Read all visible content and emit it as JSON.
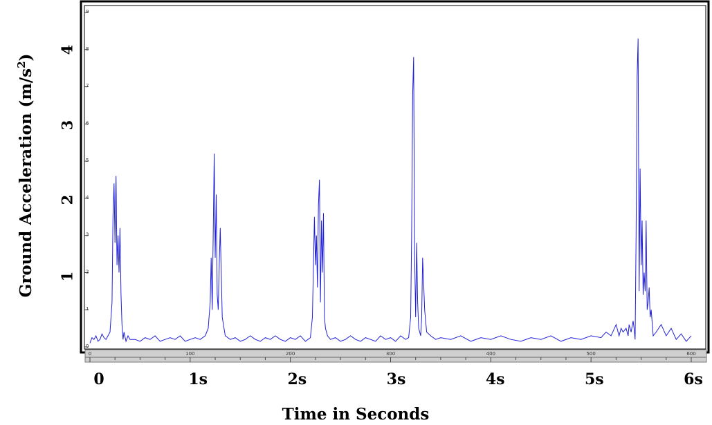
{
  "chart_data": {
    "type": "line",
    "title": "",
    "xlabel": "Time in Seconds",
    "ylabel": "Ground Acceleration (m/s",
    "ylabel_superscript": "2",
    "ylabel_close": ")",
    "x_major_ticks": [
      "0",
      "1s",
      "2s",
      "3s",
      "4s",
      "5s",
      "6s"
    ],
    "y_major_ticks": [
      "1",
      "2",
      "3",
      "4"
    ],
    "y_major_values": [
      1,
      2,
      3,
      4
    ],
    "y_minor_ticks": [
      "0",
      "1",
      "2",
      "3",
      "4",
      "5",
      "6",
      "7",
      "8",
      "9"
    ],
    "x_minor_ticks": [
      "0",
      "100",
      "200",
      "300",
      "400",
      "500",
      "600"
    ],
    "xlim": [
      0,
      600
    ],
    "ylim": [
      0,
      9
    ],
    "grid": false,
    "series": [
      {
        "color": "#1f1fd8",
        "x": [
          0,
          2,
          4,
          6,
          8,
          10,
          12,
          14,
          16,
          18,
          20,
          22,
          23,
          24,
          25,
          26,
          27,
          28,
          29,
          30,
          31,
          32,
          33,
          34,
          36,
          38,
          40,
          45,
          50,
          55,
          60,
          65,
          70,
          75,
          80,
          85,
          90,
          95,
          100,
          105,
          110,
          115,
          118,
          120,
          121,
          122,
          123,
          124,
          125,
          126,
          127,
          128,
          129,
          130,
          132,
          135,
          140,
          145,
          150,
          155,
          160,
          165,
          170,
          175,
          180,
          185,
          190,
          195,
          200,
          205,
          210,
          215,
          220,
          222,
          224,
          225,
          226,
          227,
          228,
          229,
          230,
          231,
          232,
          233,
          234,
          235,
          237,
          240,
          245,
          250,
          255,
          260,
          265,
          270,
          275,
          280,
          285,
          290,
          295,
          300,
          305,
          310,
          315,
          318,
          320,
          321,
          322,
          323,
          324,
          325,
          326,
          327,
          328,
          330,
          331,
          332,
          334,
          336,
          340,
          345,
          350,
          360,
          370,
          380,
          390,
          400,
          410,
          420,
          430,
          440,
          450,
          460,
          470,
          480,
          490,
          500,
          510,
          515,
          520,
          525,
          528,
          530,
          532,
          535,
          537,
          538,
          540,
          542,
          543,
          544,
          545,
          546,
          547,
          548,
          549,
          550,
          551,
          552,
          553,
          554,
          555,
          556,
          557,
          558,
          559,
          560,
          562,
          565,
          570,
          575,
          580,
          585,
          590,
          595,
          600
        ],
        "y": [
          0.1,
          0.25,
          0.2,
          0.3,
          0.15,
          0.2,
          0.35,
          0.25,
          0.2,
          0.3,
          0.4,
          1.2,
          3.5,
          4.4,
          2.8,
          4.6,
          2.2,
          3.0,
          2.0,
          3.2,
          1.4,
          0.6,
          0.2,
          0.4,
          0.15,
          0.3,
          0.2,
          0.2,
          0.15,
          0.25,
          0.2,
          0.3,
          0.15,
          0.2,
          0.25,
          0.2,
          0.3,
          0.15,
          0.2,
          0.25,
          0.2,
          0.3,
          0.5,
          1.2,
          2.4,
          1.0,
          3.0,
          5.2,
          2.4,
          4.1,
          1.4,
          1.0,
          2.2,
          3.2,
          0.8,
          0.3,
          0.2,
          0.25,
          0.15,
          0.2,
          0.3,
          0.2,
          0.15,
          0.25,
          0.2,
          0.3,
          0.2,
          0.15,
          0.25,
          0.2,
          0.3,
          0.15,
          0.25,
          0.8,
          3.5,
          2.2,
          3.0,
          1.6,
          3.8,
          4.5,
          1.2,
          3.4,
          2.0,
          3.6,
          0.8,
          0.5,
          0.3,
          0.2,
          0.25,
          0.15,
          0.2,
          0.3,
          0.2,
          0.15,
          0.25,
          0.2,
          0.15,
          0.3,
          0.2,
          0.25,
          0.15,
          0.3,
          0.2,
          0.25,
          0.8,
          3.0,
          6.8,
          7.8,
          2.4,
          0.8,
          2.8,
          1.2,
          0.5,
          0.3,
          0.8,
          2.4,
          1.0,
          0.4,
          0.3,
          0.2,
          0.25,
          0.2,
          0.3,
          0.15,
          0.25,
          0.2,
          0.3,
          0.2,
          0.15,
          0.25,
          0.2,
          0.3,
          0.15,
          0.25,
          0.2,
          0.3,
          0.25,
          0.4,
          0.3,
          0.6,
          0.3,
          0.5,
          0.4,
          0.5,
          0.3,
          0.6,
          0.4,
          0.7,
          0.5,
          0.2,
          3.0,
          7.3,
          8.3,
          1.5,
          4.8,
          2.2,
          3.4,
          1.4,
          2.0,
          1.5,
          3.4,
          1.0,
          1.2,
          1.6,
          0.8,
          1.0,
          0.3,
          0.4,
          0.6,
          0.3,
          0.5,
          0.2,
          0.35,
          0.15,
          0.3
        ]
      }
    ]
  }
}
